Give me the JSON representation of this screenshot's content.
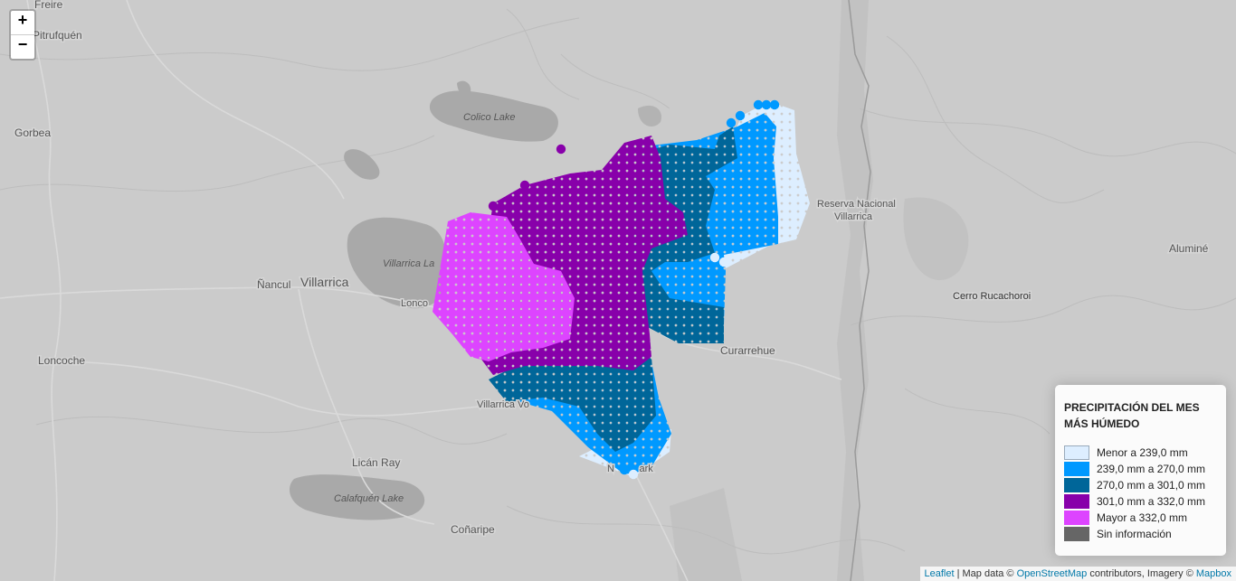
{
  "zoom": {
    "in_label": "+",
    "out_label": "−"
  },
  "place_labels": [
    {
      "id": "freire",
      "text": "Freire"
    },
    {
      "id": "pitrufquen",
      "text": "Pitrufquén"
    },
    {
      "id": "gorbea",
      "text": "Gorbea"
    },
    {
      "id": "colico-lake",
      "text": "Colico Lake"
    },
    {
      "id": "villarrica-lake",
      "text": "Villarrica La"
    },
    {
      "id": "nancul",
      "text": "Ñancul"
    },
    {
      "id": "villarrica",
      "text": "Villarrica"
    },
    {
      "id": "lonco",
      "text": "Lonco"
    },
    {
      "id": "loncoche",
      "text": "Loncoche"
    },
    {
      "id": "villarrica-volcano",
      "text": "Villarrica Vo"
    },
    {
      "id": "lican-ray",
      "text": "Licán Ray"
    },
    {
      "id": "calafquen-lake",
      "text": "Calafquén Lake"
    },
    {
      "id": "conaripe",
      "text": "Coñaripe"
    },
    {
      "id": "curarrehue",
      "text": "Curarrehue"
    },
    {
      "id": "reserva-nacional",
      "text": "Reserva Nacional"
    },
    {
      "id": "reserva-villarrica",
      "text": "Villarrica"
    },
    {
      "id": "alumine",
      "text": "Aluminé"
    },
    {
      "id": "cerro-rucachoroi",
      "text": "Cerro Rucachoroi"
    },
    {
      "id": "park",
      "text": "N         ark"
    }
  ],
  "legend": {
    "title": "PRECIPITACIÓN DEL MES MÁS HÚMEDO",
    "items": [
      {
        "label": "Menor a 239,0 mm",
        "color": "#ddeeff"
      },
      {
        "label": "239,0 mm a 270,0 mm",
        "color": "#0099ff"
      },
      {
        "label": "270,0 mm a 301,0 mm",
        "color": "#006699"
      },
      {
        "label": "301,0 mm a 332,0 mm",
        "color": "#8800aa"
      },
      {
        "label": "Mayor a 332,0 mm",
        "color": "#dd44ff"
      },
      {
        "label": "Sin información",
        "color": "#666666"
      }
    ]
  },
  "attribution": {
    "leaflet": "Leaflet",
    "sep1": " | Map data © ",
    "osm": "OpenStreetMap",
    "mid": " contributors, Imagery © ",
    "mapbox": "Mapbox"
  }
}
